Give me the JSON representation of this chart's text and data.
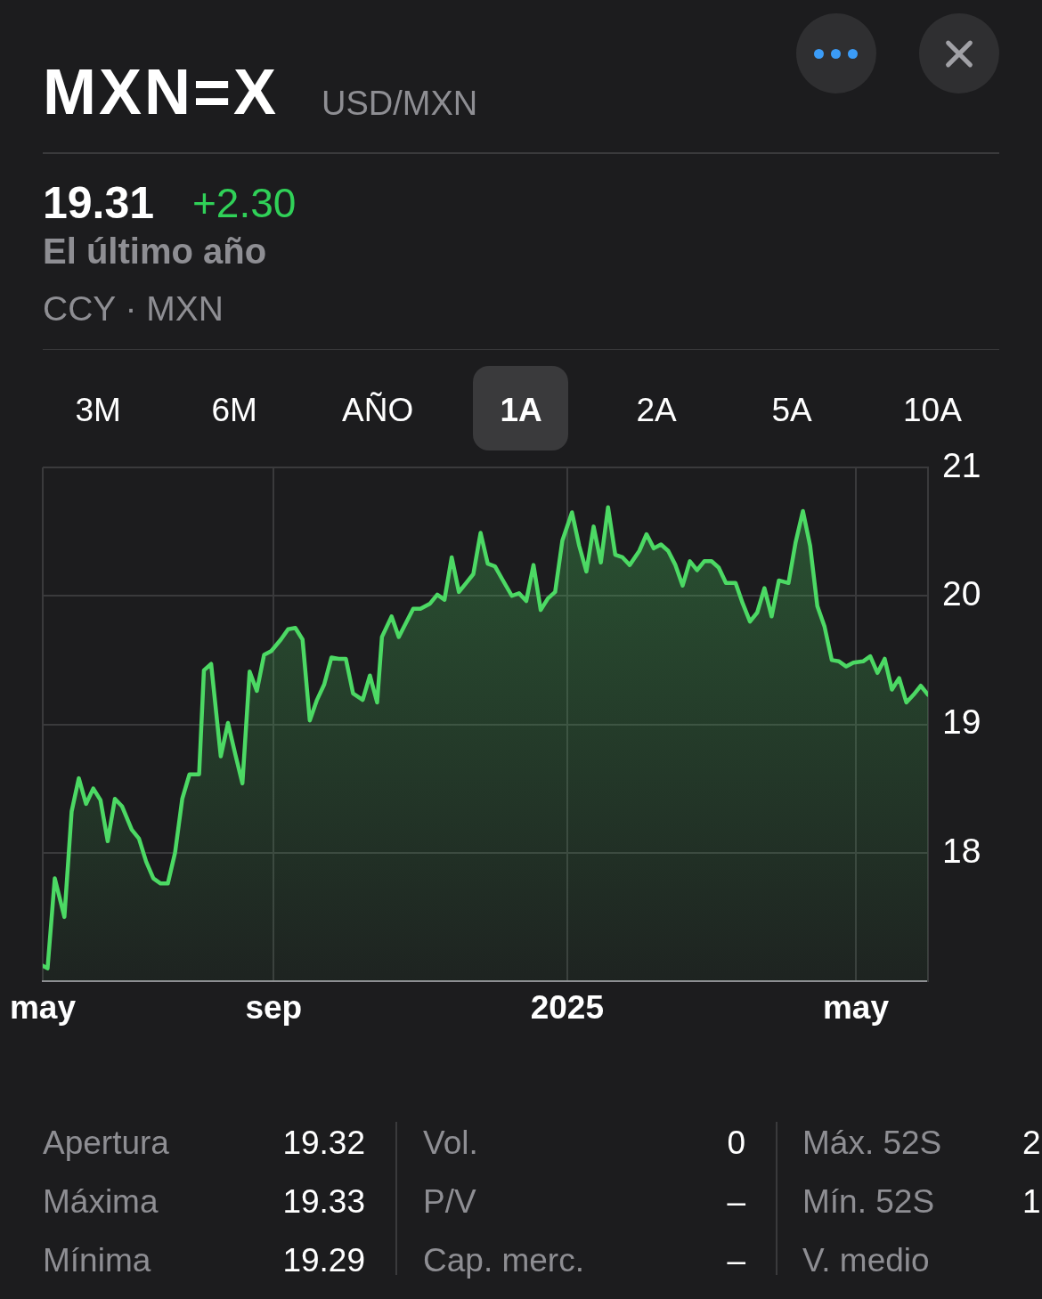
{
  "chart_data": {
    "type": "area",
    "title": "MXN=X",
    "subtitle": "USD/MXN",
    "annotations": [
      "19.31",
      "+2.30",
      "El último año",
      "CCY · MXN",
      "3M",
      "6M",
      "AÑO",
      "1A",
      "2A",
      "5A",
      "10A",
      "Apertura",
      "19.32",
      "Máxima",
      "19.33",
      "Mínima",
      "19.29",
      "Vol.",
      "0",
      "P/V",
      "–",
      "Cap. merc.",
      "–",
      "Máx. 52S",
      "2",
      "Mín. 52S",
      "1",
      "V. medio"
    ],
    "x": [
      "2024-05-28",
      "2024-05-30",
      "2024-06-02",
      "2024-06-06",
      "2024-06-09",
      "2024-06-12",
      "2024-06-15",
      "2024-06-18",
      "2024-06-21",
      "2024-06-24",
      "2024-06-27",
      "2024-06-30",
      "2024-07-04",
      "2024-07-07",
      "2024-07-10",
      "2024-07-13",
      "2024-07-16",
      "2024-07-19",
      "2024-07-22",
      "2024-07-25",
      "2024-07-28",
      "2024-08-01",
      "2024-08-03",
      "2024-08-06",
      "2024-08-10",
      "2024-08-13",
      "2024-08-16",
      "2024-08-19",
      "2024-08-22",
      "2024-08-25",
      "2024-08-28",
      "2024-08-31",
      "2024-09-04",
      "2024-09-07",
      "2024-09-10",
      "2024-09-13",
      "2024-09-16",
      "2024-09-19",
      "2024-09-22",
      "2024-09-25",
      "2024-09-28",
      "2024-10-01",
      "2024-10-04",
      "2024-10-08",
      "2024-10-11",
      "2024-10-14",
      "2024-10-16",
      "2024-10-20",
      "2024-10-23",
      "2024-10-29",
      "2024-11-01",
      "2024-11-05",
      "2024-11-08",
      "2024-11-11",
      "2024-11-14",
      "2024-11-17",
      "2024-11-20",
      "2024-11-23",
      "2024-11-26",
      "2024-11-29",
      "2024-12-02",
      "2024-12-05",
      "2024-12-09",
      "2024-12-12",
      "2024-12-15",
      "2024-12-18",
      "2024-12-21",
      "2024-12-24",
      "2024-12-27",
      "2024-12-30",
      "2025-01-03",
      "2025-01-06",
      "2025-01-09",
      "2025-01-12",
      "2025-01-15",
      "2025-01-18",
      "2025-01-21",
      "2025-01-24",
      "2025-01-27",
      "2025-01-31",
      "2025-02-03",
      "2025-02-06",
      "2025-02-09",
      "2025-02-12",
      "2025-02-15",
      "2025-02-18",
      "2025-02-21",
      "2025-02-24",
      "2025-02-27",
      "2025-03-02",
      "2025-03-05",
      "2025-03-08",
      "2025-03-12",
      "2025-03-15",
      "2025-03-18",
      "2025-03-21",
      "2025-03-24",
      "2025-03-27",
      "2025-03-30",
      "2025-04-03",
      "2025-04-06",
      "2025-04-09",
      "2025-04-12",
      "2025-04-15",
      "2025-04-18",
      "2025-04-21",
      "2025-04-24",
      "2025-04-27",
      "2025-04-30",
      "2025-05-04",
      "2025-05-07",
      "2025-05-10",
      "2025-05-13",
      "2025-05-16",
      "2025-05-19",
      "2025-05-22",
      "2025-05-25",
      "2025-05-28",
      "2025-05-31"
    ],
    "values": [
      17.12,
      17.1,
      17.8,
      17.5,
      18.32,
      18.58,
      18.38,
      18.5,
      18.41,
      18.09,
      18.42,
      18.36,
      18.18,
      18.11,
      17.93,
      17.8,
      17.76,
      17.76,
      18.0,
      18.42,
      18.61,
      18.61,
      19.42,
      19.47,
      18.75,
      19.01,
      18.77,
      18.54,
      19.41,
      19.26,
      19.54,
      19.57,
      19.66,
      19.74,
      19.75,
      19.66,
      19.03,
      19.19,
      19.31,
      19.52,
      19.51,
      19.51,
      19.24,
      19.19,
      19.38,
      19.17,
      19.68,
      19.84,
      19.68,
      19.9,
      19.9,
      19.94,
      20.01,
      19.97,
      20.3,
      20.03,
      20.1,
      20.17,
      20.49,
      20.25,
      20.23,
      20.13,
      20.0,
      20.02,
      19.96,
      20.24,
      19.89,
      19.98,
      20.03,
      20.43,
      20.65,
      20.39,
      20.19,
      20.54,
      20.26,
      20.69,
      20.32,
      20.3,
      20.24,
      20.35,
      20.48,
      20.37,
      20.4,
      20.35,
      20.24,
      20.08,
      20.27,
      20.2,
      20.27,
      20.27,
      20.22,
      20.1,
      20.1,
      19.94,
      19.8,
      19.87,
      20.06,
      19.84,
      20.12,
      20.1,
      20.42,
      20.66,
      20.39,
      19.92,
      19.76,
      19.5,
      19.49,
      19.45,
      19.48,
      19.49,
      19.53,
      19.4,
      19.51,
      19.27,
      19.36,
      19.17,
      19.23,
      19.3,
      19.23
    ],
    "color": "#4cd964",
    "xlim": [
      "2024-05-28",
      "2025-05-31"
    ],
    "xticks": [
      {
        "value": "2024-05-28",
        "label": "may"
      },
      {
        "value": "2024-09",
        "label": "sep"
      },
      {
        "value": "2025",
        "label": "2025"
      },
      {
        "value": "2025-05",
        "label": "may"
      }
    ],
    "ylim": [
      17,
      21
    ],
    "yticks": [
      18,
      19,
      20,
      21
    ],
    "grid": true
  }
}
